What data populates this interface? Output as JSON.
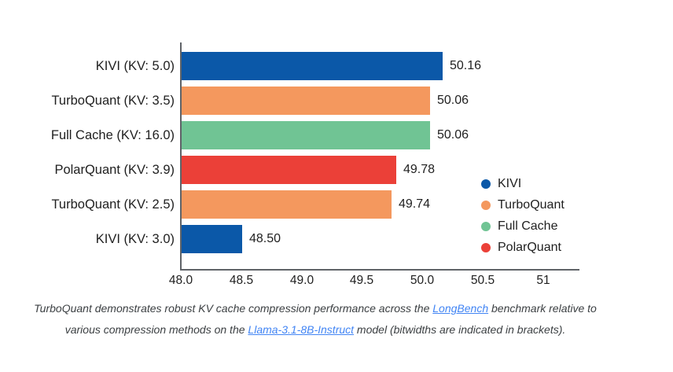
{
  "chart_data": {
    "type": "bar",
    "orientation": "horizontal",
    "categories": [
      "KIVI (KV: 5.0)",
      "TurboQuant (KV: 3.5)",
      "Full Cache (KV: 16.0)",
      "PolarQuant (KV: 3.9)",
      "TurboQuant (KV: 2.5)",
      "KIVI (KV: 3.0)"
    ],
    "values": [
      50.16,
      50.06,
      50.06,
      49.78,
      49.74,
      48.5
    ],
    "value_labels": [
      "50.16",
      "50.06",
      "50.06",
      "49.78",
      "49.74",
      "48.50"
    ],
    "bar_series": [
      "KIVI",
      "TurboQuant",
      "Full Cache",
      "PolarQuant",
      "TurboQuant",
      "KIVI"
    ],
    "series_colors": {
      "KIVI": "#0b58a8",
      "TurboQuant": "#f4985e",
      "Full Cache": "#70c494",
      "PolarQuant": "#eb4038"
    },
    "xlim": [
      48.0,
      51.0
    ],
    "x_ticks": [
      {
        "label": "48.0",
        "value": 48.0
      },
      {
        "label": "48.5",
        "value": 48.5
      },
      {
        "label": "49.0",
        "value": 49.0
      },
      {
        "label": "49.5",
        "value": 49.5
      },
      {
        "label": "50.0",
        "value": 50.0
      },
      {
        "label": "50.5",
        "value": 50.5
      },
      {
        "label": "51",
        "value": 51.0
      }
    ],
    "grid": false,
    "xlabel": "",
    "ylabel": "",
    "legend": {
      "position": "right-middle",
      "entries": [
        {
          "label": "KIVI",
          "color": "#0b58a8"
        },
        {
          "label": "TurboQuant",
          "color": "#f4985e"
        },
        {
          "label": "Full Cache",
          "color": "#70c494"
        },
        {
          "label": "PolarQuant",
          "color": "#eb4038"
        }
      ]
    }
  },
  "caption": {
    "part1": "TurboQuant demonstrates robust KV cache compression performance across the ",
    "link1": "LongBench",
    "part2": " benchmark relative to various compression methods on the ",
    "link2": "Llama-3.1-8B-Instruct",
    "part3": " model (bitwidths are indicated in brackets).",
    "text_color": "#3c4043",
    "link_color": "#4285f4"
  },
  "layout_colors": {
    "axis": "#5f6368",
    "label_text": "#1f1f1f",
    "background": "#ffffff"
  }
}
